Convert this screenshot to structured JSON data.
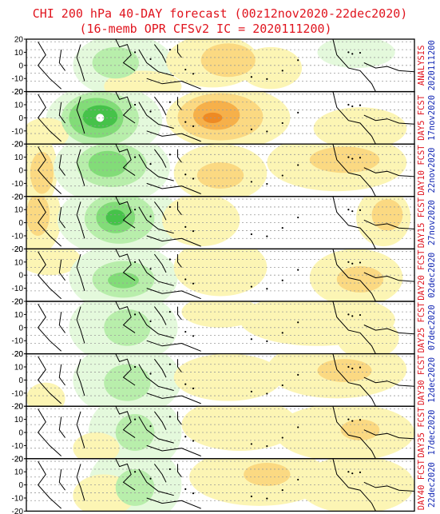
{
  "title": "CHI 200 hPa 40-DAY forecast (00z12nov2020-22dec2020)",
  "subtitle": "(16-memb OPR CFSv2 IC = 2020111200)",
  "colors": {
    "title": "#e0141e",
    "label_red": "#e0141e",
    "label_blue": "#1428b4",
    "coast": "#000000",
    "grid": "#9a9a9a",
    "pos_light": "#fcf5b4",
    "pos_mid": "#fbd982",
    "pos_strong": "#f6b04a",
    "pos_max": "#ee8a24",
    "neg_light": "#e4f9dc",
    "neg_mid": "#b8eeab",
    "neg_strong": "#82dc78",
    "neg_max": "#46c24a"
  },
  "chart_data": {
    "type": "heatmap",
    "variable": "CHI 200 hPa",
    "yticks": [
      "20",
      "10",
      "0",
      "-10",
      "-20"
    ],
    "panels": [
      {
        "label_top": "ANALYSIS",
        "label_bottom": "2020111200",
        "top_color": "red",
        "bottom_color": "blue"
      },
      {
        "label_top": "DAY5 FCST",
        "label_bottom": "17nov2020",
        "top_color": "red",
        "bottom_color": "blue"
      },
      {
        "label_top": "DAY10 FCST",
        "label_bottom": "22nov2020",
        "top_color": "red",
        "bottom_color": "blue"
      },
      {
        "label_top": "DAY15 FCST",
        "label_bottom": "27nov2020",
        "top_color": "red",
        "bottom_color": "blue"
      },
      {
        "label_top": "DAY20 FCST",
        "label_bottom": "02dec2020",
        "top_color": "red",
        "bottom_color": "blue"
      },
      {
        "label_top": "DAY25 FCST",
        "label_bottom": "07dec2020",
        "top_color": "red",
        "bottom_color": "blue"
      },
      {
        "label_top": "DAY30 FCST",
        "label_bottom": "12dec2020",
        "top_color": "red",
        "bottom_color": "blue"
      },
      {
        "label_top": "DAY35 FCST",
        "label_bottom": "17dec2020",
        "top_color": "red",
        "bottom_color": "blue"
      },
      {
        "label_top": "DAY40 FCST",
        "label_bottom": "22dec2020",
        "top_color": "red",
        "bottom_color": "blue"
      }
    ]
  }
}
